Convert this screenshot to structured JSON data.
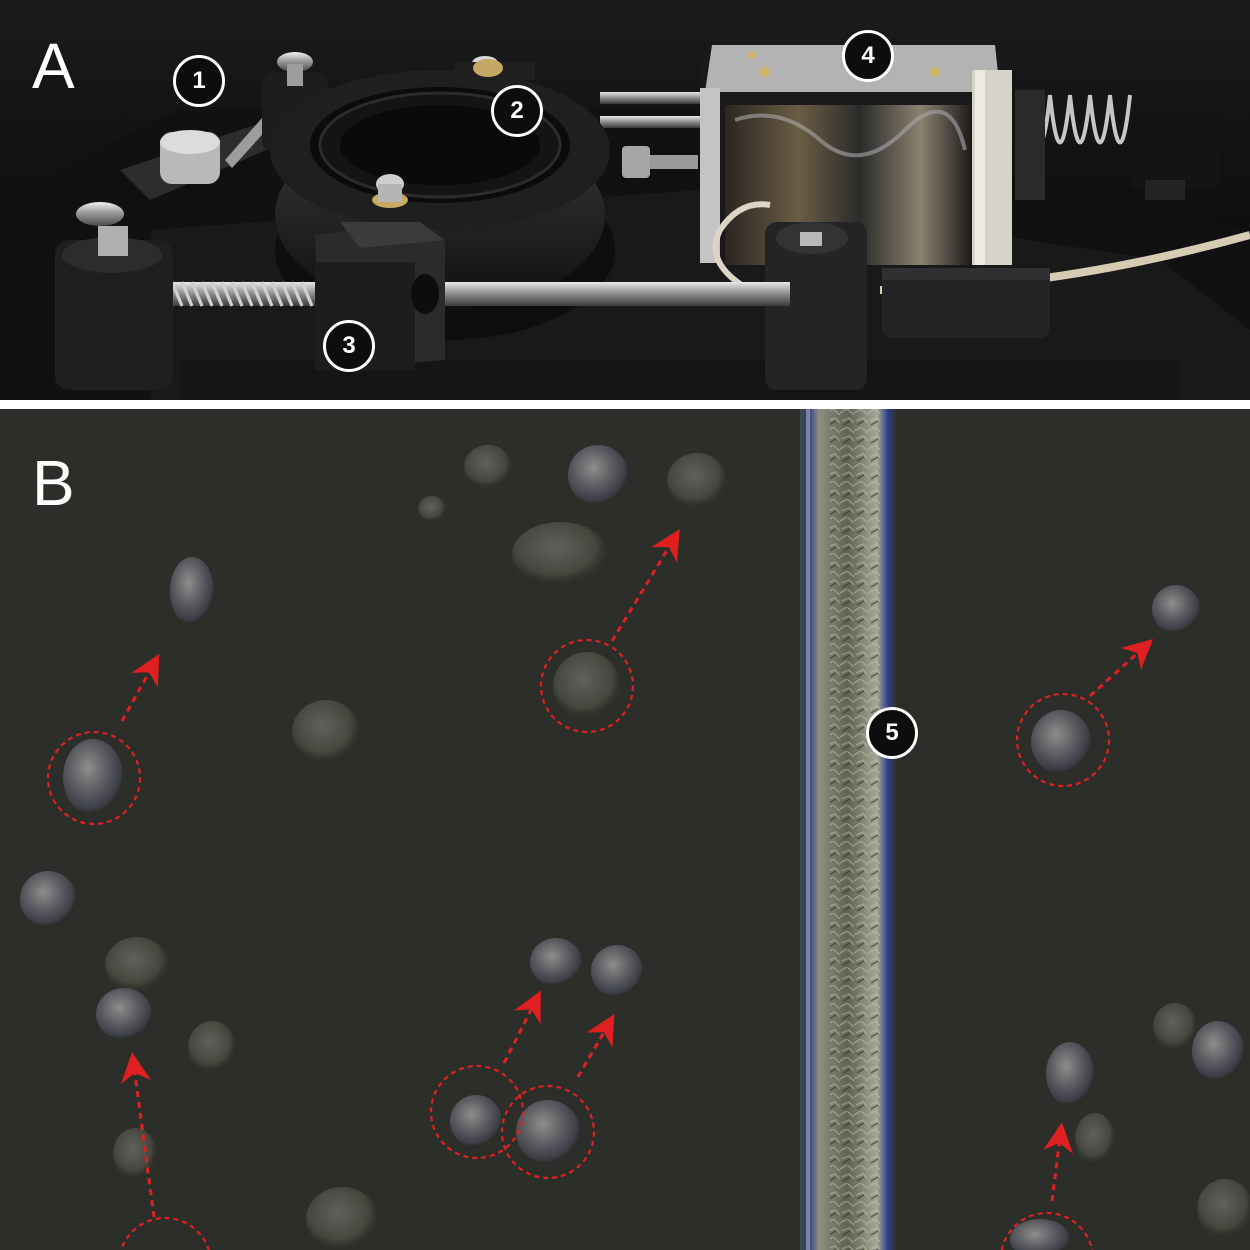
{
  "panel_a": {
    "letter": "A",
    "badges": [
      "1",
      "2",
      "3",
      "4",
      "5"
    ]
  },
  "panel_b": {
    "letter": "B"
  },
  "colors": {
    "annotation_red": "#e02020",
    "badge_fill": "#0d0d0d",
    "badge_ring": "#ffffff",
    "letter": "#ffffff"
  }
}
